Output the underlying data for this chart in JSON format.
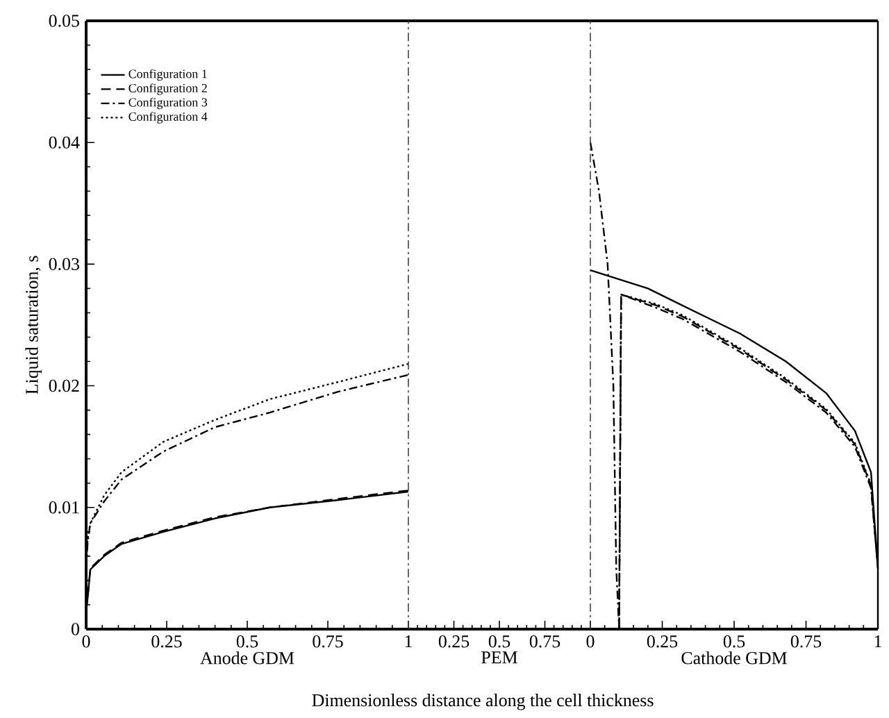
{
  "chart_data": [
    {
      "type": "line",
      "ylabel": "Liquid saturation, s",
      "xlabel": "Anode GDM",
      "xlim": [
        0,
        1
      ],
      "xticks": [
        0,
        0.25,
        0.5,
        0.75,
        1
      ],
      "ylim": [
        0,
        0.05
      ],
      "yticks": [
        0,
        0.01,
        0.02,
        0.03,
        0.04,
        0.05
      ],
      "legend": "top left",
      "series": [
        {
          "name": "Configuration 1",
          "color": "#000000",
          "line_style": "solid",
          "x": [
            0,
            0.005,
            0.013,
            0.056,
            0.11,
            0.24,
            0.4,
            0.57,
            0.78,
            1
          ],
          "values": [
            0.0015,
            0.0026,
            0.0049,
            0.006,
            0.007,
            0.008,
            0.0091,
            0.01,
            0.0106,
            0.0113
          ]
        },
        {
          "name": "Configuration 2",
          "color": "#000000",
          "line_style": "dashed",
          "x": [
            0,
            0.005,
            0.013,
            0.056,
            0.11,
            0.24,
            0.4,
            0.57,
            0.78,
            1
          ],
          "values": [
            0.0015,
            0.0027,
            0.005,
            0.0061,
            0.0071,
            0.0081,
            0.0092,
            0.01,
            0.0107,
            0.0114
          ]
        },
        {
          "name": "Configuration 3",
          "color": "#000000",
          "line_style": "dashdot",
          "x": [
            0,
            0.005,
            0.013,
            0.056,
            0.11,
            0.24,
            0.4,
            0.57,
            0.78,
            1
          ],
          "values": [
            0.005,
            0.0072,
            0.0087,
            0.0105,
            0.0123,
            0.0146,
            0.0166,
            0.0178,
            0.0195,
            0.0209
          ]
        },
        {
          "name": "Configuration 4",
          "color": "#000000",
          "line_style": "dotted",
          "x": [
            0,
            0.005,
            0.013,
            0.056,
            0.11,
            0.24,
            0.4,
            0.57,
            0.78,
            1
          ],
          "values": [
            0.0055,
            0.0075,
            0.0087,
            0.011,
            0.0129,
            0.0154,
            0.0172,
            0.0189,
            0.0203,
            0.0218
          ]
        }
      ]
    },
    {
      "type": "line",
      "xlabel": "PEM",
      "xlim": [
        0,
        1
      ],
      "xticks": [
        {
          "value": 0,
          "label": null
        },
        0.25,
        0.5,
        0.75,
        {
          "value": 1,
          "label": null
        }
      ],
      "ylim": [
        0,
        0.05
      ],
      "tick_labels": "x",
      "annotations": [
        "Dimensionless distance along the cell thickness"
      ]
    },
    {
      "type": "line",
      "xlabel": "Cathode GDM",
      "xlim": [
        0,
        1
      ],
      "xticks": [
        0,
        0.25,
        0.5,
        0.75,
        1
      ],
      "ylim": [
        0,
        0.05
      ],
      "tick_labels": "x",
      "series": [
        {
          "color": "#000000",
          "line_style": "solid",
          "x": [
            0,
            0.2,
            0.32,
            0.52,
            0.68,
            0.82,
            0.92,
            0.976,
            1
          ],
          "values": [
            0.0295,
            0.028,
            0.0266,
            0.0243,
            0.022,
            0.0194,
            0.0163,
            0.0129,
            0.005
          ]
        },
        {
          "color": "#000000",
          "line_style": "dashed",
          "x": [
            0.1,
            0.107,
            0.23,
            0.32,
            0.52,
            0.68,
            0.82,
            0.92,
            0.976,
            1
          ],
          "values": [
            0,
            0.0275,
            0.0266,
            0.0257,
            0.023,
            0.0205,
            0.018,
            0.0152,
            0.0118,
            0.005
          ]
        },
        {
          "color": "#000000",
          "line_style": "dashdot",
          "x": [
            0,
            0.03,
            0.06,
            0.08,
            0.09,
            0.1,
            0.107,
            0.23,
            0.32,
            0.52,
            0.68,
            0.82,
            0.92,
            0.976,
            1
          ],
          "values": [
            0.04,
            0.036,
            0.03,
            0.02,
            0.005,
            0,
            0.0275,
            0.0264,
            0.0255,
            0.0228,
            0.0203,
            0.0178,
            0.015,
            0.0116,
            0.005
          ]
        },
        {
          "color": "#000000",
          "line_style": "dotted",
          "x": [
            0.1,
            0.107,
            0.23,
            0.32,
            0.52,
            0.68,
            0.82,
            0.92,
            0.976,
            1
          ],
          "values": [
            0,
            0.0275,
            0.0267,
            0.0258,
            0.0231,
            0.0206,
            0.0181,
            0.0153,
            0.0119,
            0.005
          ]
        }
      ]
    }
  ]
}
